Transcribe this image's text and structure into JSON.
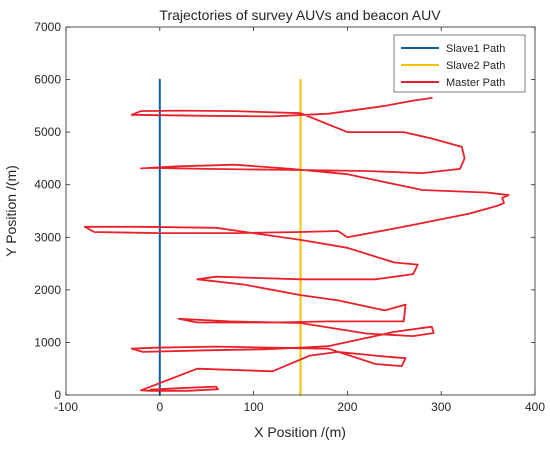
{
  "chart_data": {
    "type": "line",
    "title": "Trajectories of survey AUVs and beacon AUV",
    "xlabel": "X Position /(m)",
    "ylabel": "Y Position /(m)",
    "xlim": [
      -100,
      400
    ],
    "ylim": [
      0,
      7000
    ],
    "xticks": [
      "-100",
      "0",
      "100",
      "200",
      "300",
      "400"
    ],
    "yticks": [
      "0",
      "1000",
      "2000",
      "3000",
      "4000",
      "5000",
      "6000",
      "7000"
    ],
    "grid": false,
    "legend_position": "top-right",
    "series": [
      {
        "name": "Slave1 Path",
        "color": "#0f5f9e",
        "x": [
          0,
          0
        ],
        "y": [
          0,
          6000
        ]
      },
      {
        "name": "Slave2 Path",
        "color": "#f2c400",
        "x": [
          150,
          150
        ],
        "y": [
          0,
          6000
        ]
      },
      {
        "name": "Master Path",
        "color": "#e8202a",
        "x": [
          -10,
          20,
          60,
          62,
          30,
          -10,
          -20,
          40,
          120,
          160,
          190,
          235,
          262,
          258,
          230,
          180,
          120,
          60,
          -5,
          -30,
          -18,
          50,
          110,
          150,
          180,
          250,
          290,
          292,
          270,
          220,
          150,
          75,
          20,
          40,
          120,
          180,
          260,
          262,
          240,
          190,
          150,
          90,
          40,
          60,
          150,
          230,
          270,
          275,
          250,
          200,
          150,
          60,
          -20,
          -80,
          -70,
          0,
          80,
          150,
          190,
          200,
          260,
          330,
          360,
          367,
          365,
          372,
          350,
          280,
          200,
          140,
          80,
          20,
          -20,
          -10,
          50,
          150,
          220,
          280,
          320,
          325,
          322,
          290,
          260,
          200,
          150,
          80,
          20,
          -20,
          -30,
          50,
          120,
          180,
          240,
          270,
          290
        ],
        "y": [
          100,
          130,
          160,
          110,
          80,
          80,
          90,
          500,
          450,
          750,
          820,
          740,
          700,
          550,
          590,
          880,
          900,
          920,
          900,
          880,
          820,
          850,
          870,
          900,
          930,
          1200,
          1300,
          1180,
          1120,
          1170,
          1370,
          1400,
          1450,
          1380,
          1380,
          1400,
          1400,
          1720,
          1610,
          1800,
          1900,
          2100,
          2200,
          2250,
          2200,
          2200,
          2300,
          2480,
          2520,
          2800,
          2950,
          3180,
          3200,
          3200,
          3100,
          3080,
          3080,
          3100,
          3120,
          3000,
          3200,
          3450,
          3600,
          3650,
          3750,
          3800,
          3850,
          3900,
          4200,
          4300,
          4380,
          4350,
          4310,
          4320,
          4300,
          4280,
          4260,
          4220,
          4300,
          4500,
          4720,
          4880,
          5000,
          5000,
          5360,
          5400,
          5410,
          5400,
          5330,
          5310,
          5300,
          5350,
          5500,
          5600,
          5650
        ]
      }
    ]
  }
}
